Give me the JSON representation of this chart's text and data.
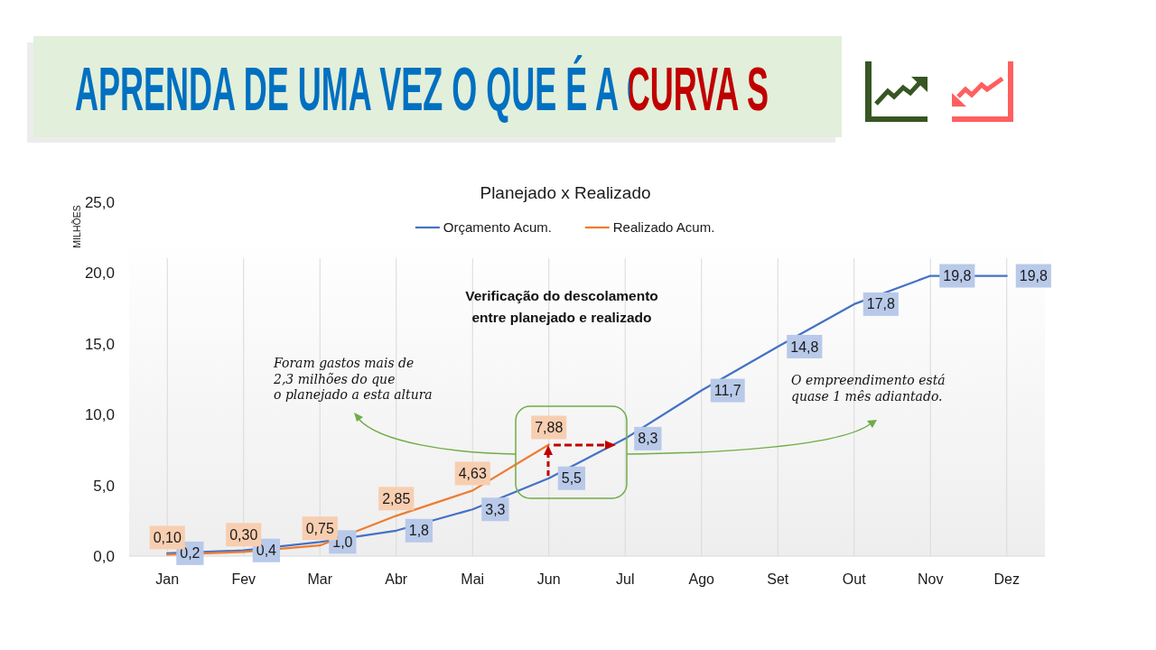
{
  "chart_data": {
    "type": "line",
    "title": "APRENDA DE UMA VEZ O QUE É A CURVA S",
    "subtitle": "Planejado x Realizado",
    "ylabel": "MILHÕES",
    "categories": [
      "Jan",
      "Fev",
      "Mar",
      "Abr",
      "Mai",
      "Jun",
      "Jul",
      "Ago",
      "Set",
      "Out",
      "Nov",
      "Dez"
    ],
    "series": [
      {
        "name": "Orçamento Acum.",
        "color": "#4472c4",
        "values": [
          0.2,
          0.4,
          1.0,
          1.8,
          3.3,
          5.5,
          8.3,
          11.7,
          14.8,
          17.8,
          19.8,
          19.8
        ],
        "value_labels": [
          "0,2",
          "0,4",
          "1,0",
          "1,8",
          "3,3",
          "5,5",
          "8,3",
          "11,7",
          "14,8",
          "17,8",
          "19,8",
          "19,8"
        ]
      },
      {
        "name": "Realizado Acum.",
        "color": "#ed7d31",
        "values": [
          0.1,
          0.3,
          0.75,
          2.85,
          4.63,
          7.88,
          null,
          null,
          null,
          null,
          null,
          null
        ],
        "value_labels": [
          "0,10",
          "0,30",
          "0,75",
          "2,85",
          "4,63",
          "7,88",
          null,
          null,
          null,
          null,
          null,
          null
        ]
      }
    ],
    "ylim": [
      0,
      25
    ],
    "yticks": [
      {
        "value": 0,
        "label": "0,0"
      },
      {
        "value": 5,
        "label": "5,0"
      },
      {
        "value": 10,
        "label": "10,0"
      },
      {
        "value": 15,
        "label": "15,0"
      },
      {
        "value": 20,
        "label": "20,0"
      },
      {
        "value": 25,
        "label": "25,0"
      }
    ],
    "grid": "x",
    "legend": "top",
    "annotations": [
      "Verificação do descolamento\nentre planejado e realizado",
      "Foram gastos mais de\n2,3 milhões do que\no planejado a esta altura",
      "O empreendimento está\nquase 1 mês adiantado."
    ]
  }
}
